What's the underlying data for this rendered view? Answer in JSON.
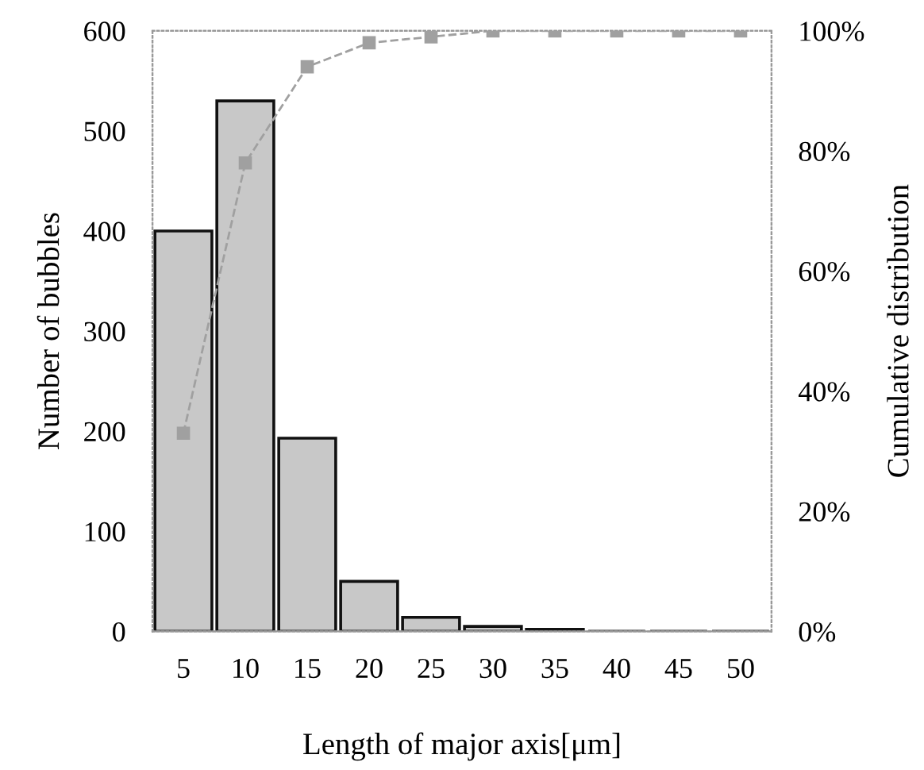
{
  "chart_data": {
    "type": "bar",
    "xlabel": "Length of major axis[μm]",
    "ylabel": "Number of bubbles",
    "y2label": "Cumulative distribution",
    "categories": [
      "5",
      "10",
      "15",
      "20",
      "25",
      "30",
      "35",
      "40",
      "45",
      "50"
    ],
    "series": [
      {
        "color": "#c8c8c8",
        "values": [
          400,
          530,
          193,
          50,
          14,
          5,
          2,
          0,
          0,
          0
        ]
      },
      {
        "type": "line",
        "axis": "y2",
        "color": "#a0a0a0",
        "marker": "square",
        "line_style": "dashed",
        "values": [
          33,
          78,
          94,
          98,
          99,
          100,
          100,
          100,
          100,
          100
        ]
      }
    ],
    "ylim": [
      0,
      600
    ],
    "yticks": [
      0,
      100,
      200,
      300,
      400,
      500,
      600
    ],
    "y2lim": [
      0,
      100
    ],
    "y2ticks": [
      {
        "value": 0,
        "label": "0%"
      },
      {
        "value": 20,
        "label": "20%"
      },
      {
        "value": 40,
        "label": "40%"
      },
      {
        "value": 60,
        "label": "60%"
      },
      {
        "value": 80,
        "label": "80%"
      },
      {
        "value": 100,
        "label": "100%"
      }
    ],
    "grid": false,
    "legend": false
  }
}
